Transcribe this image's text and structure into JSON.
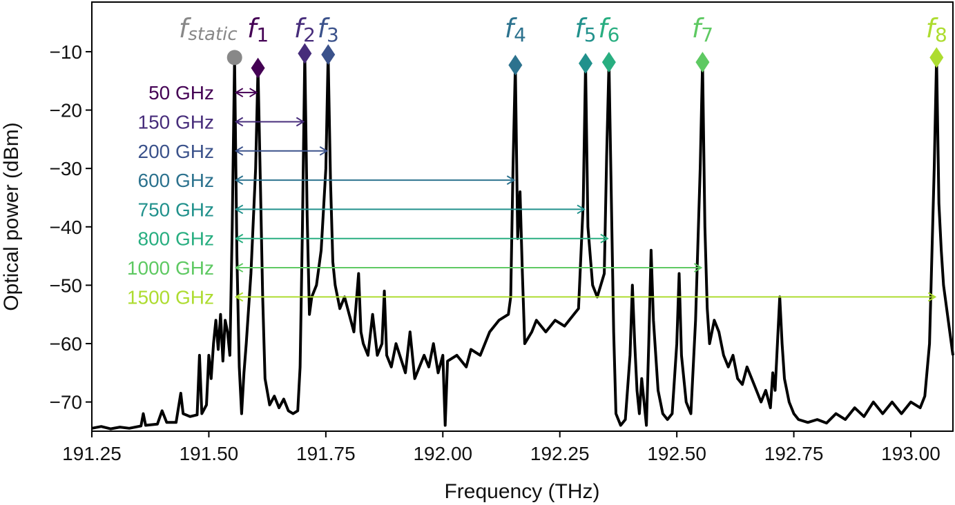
{
  "chart_data": {
    "type": "line",
    "xlabel": "Frequency (THz)",
    "ylabel": "Optical power (dBm)",
    "xlim": [
      191.25,
      193.09
    ],
    "ylim": [
      -75,
      -1.5
    ],
    "x_ticks": [
      191.25,
      191.5,
      191.75,
      192.0,
      192.25,
      192.5,
      192.75,
      193.0
    ],
    "x_tick_labels": [
      "191.25",
      "191.50",
      "191.75",
      "192.00",
      "192.25",
      "192.50",
      "192.75",
      "193.00"
    ],
    "y_ticks": [
      -70,
      -60,
      -50,
      -40,
      -30,
      -20,
      -10
    ],
    "y_tick_labels": [
      "−70",
      "−60",
      "−50",
      "−40",
      "−30",
      "−20",
      "−10"
    ],
    "grid": false,
    "line_color": "#000000",
    "static_peak": {
      "label": "static",
      "x": 191.555,
      "y": -11,
      "color": "#888888"
    },
    "peaks": [
      {
        "label": "1",
        "x": 191.605,
        "y": -12.8,
        "color": "#440154"
      },
      {
        "label": "2",
        "x": 191.705,
        "y": -10.3,
        "color": "#472d7b"
      },
      {
        "label": "3",
        "x": 191.755,
        "y": -10.5,
        "color": "#3b528b"
      },
      {
        "label": "4",
        "x": 192.155,
        "y": -12.3,
        "color": "#2c728e"
      },
      {
        "label": "5",
        "x": 192.305,
        "y": -12.0,
        "color": "#21918c"
      },
      {
        "label": "6",
        "x": 192.355,
        "y": -11.8,
        "color": "#28ae80"
      },
      {
        "label": "7",
        "x": 192.555,
        "y": -11.8,
        "color": "#5ec962"
      },
      {
        "label": "8",
        "x": 193.055,
        "y": -11.0,
        "color": "#addc30"
      }
    ],
    "spacing_annotations": [
      {
        "label": "50 GHz",
        "x_start": 191.555,
        "x_end": 191.605,
        "y": -17,
        "color": "#440154"
      },
      {
        "label": "150 GHz",
        "x_start": 191.555,
        "x_end": 191.705,
        "y": -22,
        "color": "#472d7b"
      },
      {
        "label": "200 GHz",
        "x_start": 191.555,
        "x_end": 191.755,
        "y": -27,
        "color": "#3b528b"
      },
      {
        "label": "600 GHz",
        "x_start": 191.555,
        "x_end": 192.155,
        "y": -32,
        "color": "#2c728e"
      },
      {
        "label": "750 GHz",
        "x_start": 191.555,
        "x_end": 192.305,
        "y": -37,
        "color": "#21918c"
      },
      {
        "label": "800 GHz",
        "x_start": 191.555,
        "x_end": 192.355,
        "y": -42,
        "color": "#28ae80"
      },
      {
        "label": "1000 GHz",
        "x_start": 191.555,
        "x_end": 192.555,
        "y": -47,
        "color": "#5ec962"
      },
      {
        "label": "1500 GHz",
        "x_start": 191.555,
        "x_end": 193.055,
        "y": -52,
        "color": "#addc30"
      }
    ],
    "spectrum": [
      [
        191.25,
        -74.5
      ],
      [
        191.27,
        -74.2
      ],
      [
        191.29,
        -74.6
      ],
      [
        191.31,
        -74.3
      ],
      [
        191.33,
        -74.5
      ],
      [
        191.355,
        -74.1
      ],
      [
        191.36,
        -72
      ],
      [
        191.365,
        -74
      ],
      [
        191.39,
        -73.8
      ],
      [
        191.4,
        -71.5
      ],
      [
        191.41,
        -73.5
      ],
      [
        191.43,
        -73.5
      ],
      [
        191.44,
        -68.5
      ],
      [
        191.445,
        -72
      ],
      [
        191.46,
        -72.5
      ],
      [
        191.475,
        -72.2
      ],
      [
        191.48,
        -62
      ],
      [
        191.485,
        -72
      ],
      [
        191.495,
        -70.5
      ],
      [
        191.5,
        -62
      ],
      [
        191.505,
        -66
      ],
      [
        191.51,
        -60
      ],
      [
        191.515,
        -56
      ],
      [
        191.52,
        -61
      ],
      [
        191.525,
        -55
      ],
      [
        191.53,
        -63
      ],
      [
        191.535,
        -56
      ],
      [
        191.54,
        -58
      ],
      [
        191.545,
        -62
      ],
      [
        191.55,
        -40
      ],
      [
        191.555,
        -11
      ],
      [
        191.56,
        -45
      ],
      [
        191.565,
        -64
      ],
      [
        191.57,
        -72
      ],
      [
        191.575,
        -65
      ],
      [
        191.58,
        -60
      ],
      [
        191.59,
        -48
      ],
      [
        191.6,
        -30
      ],
      [
        191.605,
        -12.8
      ],
      [
        191.61,
        -32
      ],
      [
        191.615,
        -52
      ],
      [
        191.62,
        -66
      ],
      [
        191.63,
        -70.5
      ],
      [
        191.64,
        -69
      ],
      [
        191.65,
        -71
      ],
      [
        191.66,
        -69.5
      ],
      [
        191.67,
        -71.5
      ],
      [
        191.68,
        -72
      ],
      [
        191.69,
        -71.5
      ],
      [
        191.695,
        -64
      ],
      [
        191.7,
        -40
      ],
      [
        191.705,
        -10.3
      ],
      [
        191.71,
        -38
      ],
      [
        191.715,
        -55
      ],
      [
        191.72,
        -52
      ],
      [
        191.73,
        -50
      ],
      [
        191.74,
        -44
      ],
      [
        191.75,
        -30
      ],
      [
        191.755,
        -10.5
      ],
      [
        191.76,
        -32
      ],
      [
        191.765,
        -46
      ],
      [
        191.77,
        -50
      ],
      [
        191.78,
        -54
      ],
      [
        191.79,
        -52
      ],
      [
        191.8,
        -55
      ],
      [
        191.81,
        -58
      ],
      [
        191.82,
        -48
      ],
      [
        191.825,
        -58
      ],
      [
        191.83,
        -60
      ],
      [
        191.84,
        -62
      ],
      [
        191.85,
        -55
      ],
      [
        191.86,
        -62
      ],
      [
        191.87,
        -60
      ],
      [
        191.875,
        -51
      ],
      [
        191.88,
        -62
      ],
      [
        191.89,
        -64
      ],
      [
        191.9,
        -60
      ],
      [
        191.92,
        -65
      ],
      [
        191.93,
        -58
      ],
      [
        191.94,
        -66
      ],
      [
        191.96,
        -62
      ],
      [
        191.97,
        -64
      ],
      [
        191.98,
        -60
      ],
      [
        191.99,
        -65
      ],
      [
        192.0,
        -62
      ],
      [
        192.005,
        -74
      ],
      [
        192.01,
        -63
      ],
      [
        192.03,
        -62
      ],
      [
        192.05,
        -64
      ],
      [
        192.06,
        -61
      ],
      [
        192.08,
        -62
      ],
      [
        192.1,
        -58
      ],
      [
        192.12,
        -56
      ],
      [
        192.14,
        -55
      ],
      [
        192.145,
        -52
      ],
      [
        192.15,
        -30
      ],
      [
        192.155,
        -12.3
      ],
      [
        192.16,
        -42
      ],
      [
        192.165,
        -34
      ],
      [
        192.17,
        -48
      ],
      [
        192.175,
        -60
      ],
      [
        192.19,
        -58
      ],
      [
        192.2,
        -56
      ],
      [
        192.22,
        -58
      ],
      [
        192.24,
        -56
      ],
      [
        192.26,
        -57
      ],
      [
        192.28,
        -55
      ],
      [
        192.29,
        -54
      ],
      [
        192.3,
        -36
      ],
      [
        192.305,
        -12
      ],
      [
        192.31,
        -40
      ],
      [
        192.32,
        -50
      ],
      [
        192.33,
        -52
      ],
      [
        192.345,
        -48
      ],
      [
        192.35,
        -28
      ],
      [
        192.355,
        -11.8
      ],
      [
        192.36,
        -35
      ],
      [
        192.365,
        -58
      ],
      [
        192.37,
        -72
      ],
      [
        192.38,
        -74
      ],
      [
        192.39,
        -73
      ],
      [
        192.4,
        -62
      ],
      [
        192.405,
        -50
      ],
      [
        192.41,
        -60
      ],
      [
        192.415,
        -68
      ],
      [
        192.42,
        -72
      ],
      [
        192.425,
        -66
      ],
      [
        192.43,
        -70
      ],
      [
        192.435,
        -74
      ],
      [
        192.44,
        -60
      ],
      [
        192.445,
        -44
      ],
      [
        192.45,
        -56
      ],
      [
        192.46,
        -68
      ],
      [
        192.47,
        -72
      ],
      [
        192.48,
        -73
      ],
      [
        192.49,
        -72
      ],
      [
        192.5,
        -60
      ],
      [
        192.505,
        -48
      ],
      [
        192.51,
        -62
      ],
      [
        192.52,
        -70
      ],
      [
        192.53,
        -72
      ],
      [
        192.54,
        -56
      ],
      [
        192.55,
        -30
      ],
      [
        192.555,
        -11.8
      ],
      [
        192.56,
        -40
      ],
      [
        192.565,
        -54
      ],
      [
        192.57,
        -60
      ],
      [
        192.58,
        -56
      ],
      [
        192.59,
        -58
      ],
      [
        192.6,
        -62
      ],
      [
        192.61,
        -64
      ],
      [
        192.62,
        -62
      ],
      [
        192.63,
        -66
      ],
      [
        192.64,
        -67
      ],
      [
        192.65,
        -64
      ],
      [
        192.66,
        -66
      ],
      [
        192.67,
        -68
      ],
      [
        192.68,
        -70
      ],
      [
        192.69,
        -68
      ],
      [
        192.7,
        -71
      ],
      [
        192.705,
        -65
      ],
      [
        192.71,
        -68
      ],
      [
        192.72,
        -52
      ],
      [
        192.725,
        -60
      ],
      [
        192.73,
        -66
      ],
      [
        192.74,
        -70
      ],
      [
        192.75,
        -72
      ],
      [
        192.76,
        -73
      ],
      [
        192.78,
        -73.5
      ],
      [
        192.8,
        -73
      ],
      [
        192.82,
        -73.6
      ],
      [
        192.84,
        -72
      ],
      [
        192.86,
        -73
      ],
      [
        192.88,
        -71
      ],
      [
        192.9,
        -72.5
      ],
      [
        192.92,
        -70
      ],
      [
        192.94,
        -72
      ],
      [
        192.96,
        -70
      ],
      [
        192.98,
        -72
      ],
      [
        193.0,
        -70
      ],
      [
        193.02,
        -71
      ],
      [
        193.03,
        -69
      ],
      [
        193.04,
        -60
      ],
      [
        193.05,
        -30
      ],
      [
        193.055,
        -11
      ],
      [
        193.06,
        -36
      ],
      [
        193.065,
        -44
      ],
      [
        193.07,
        -50
      ],
      [
        193.08,
        -56
      ],
      [
        193.09,
        -62
      ]
    ]
  }
}
